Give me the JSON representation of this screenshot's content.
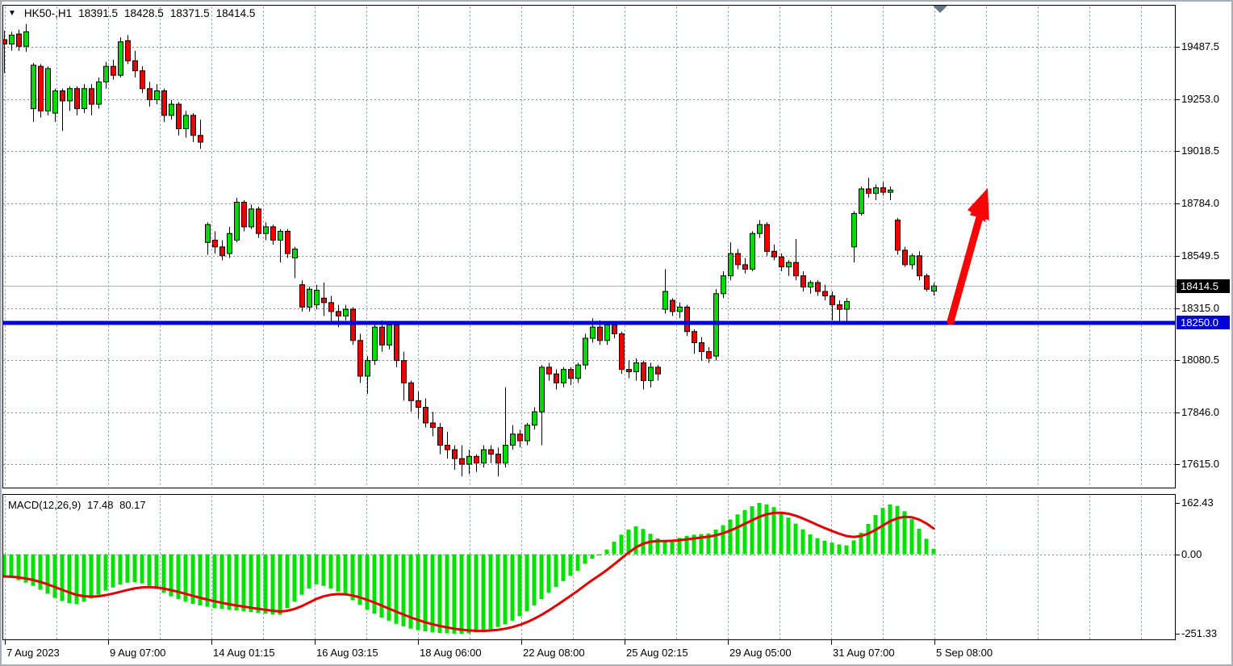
{
  "title": {
    "symbol": "HK50-,H1",
    "open": "18391.5",
    "high": "18428.5",
    "low": "18371.5",
    "close": "18414.5"
  },
  "macd_panel": {
    "name": "MACD(12,26,9)",
    "macd_value": "17.48",
    "signal_value": "80.17"
  },
  "colors": {
    "candle_up": "#00dc00",
    "candle_down": "#ee0000",
    "candle_border": "#000000",
    "wick": "#000000",
    "grid": "#7b8da0",
    "support_line": "#0000d8",
    "current_line": "#b0b0b0",
    "macd_histogram": "#00e300",
    "macd_signal": "#e60000",
    "arrow": "#f80606",
    "shift_marker": "#62788a",
    "pane_border": "#000000"
  },
  "chart_data": {
    "type": "candlestick",
    "title": "HK50-,H1",
    "symbol": "HK50-",
    "timeframe": "H1",
    "legend_position": "top-left",
    "grid": "dashed",
    "price_axis_ticks": [
      "19487.5",
      "19253.0",
      "19018.5",
      "18784.0",
      "18549.5",
      "18315.0",
      "18080.5",
      "17846.0",
      "17615.0"
    ],
    "price_range": [
      17615.0,
      19487.5
    ],
    "macd_axis_ticks": [
      "162.43",
      "0.00",
      "-251.33"
    ],
    "macd_range": [
      -251.33,
      162.43
    ],
    "time_labels": [
      "7 Aug 2023",
      "9 Aug 07:00",
      "14 Aug 01:15",
      "16 Aug 03:15",
      "18 Aug 06:00",
      "22 Aug 08:00",
      "25 Aug 02:15",
      "29 Aug 05:00",
      "31 Aug 07:00",
      "5 Sep 08:00"
    ],
    "current_price": 18414.5,
    "current_price_label": "18414.5",
    "support_level": 18250.0,
    "support_label": "18250.0",
    "annotation": {
      "type": "arrow-up",
      "meaning": "bullish-projection"
    },
    "candles_ohlc": [
      [
        19520,
        19560,
        19370,
        19500
      ],
      [
        19500,
        19555,
        19470,
        19540
      ],
      [
        19545,
        19565,
        19470,
        19490
      ],
      [
        19490,
        19590,
        19465,
        19555
      ],
      [
        19210,
        19415,
        19150,
        19405
      ],
      [
        19400,
        19410,
        19170,
        19200
      ],
      [
        19200,
        19400,
        19180,
        19390
      ],
      [
        19190,
        19300,
        19150,
        19290
      ],
      [
        19290,
        19300,
        19110,
        19245
      ],
      [
        19245,
        19310,
        19200,
        19300
      ],
      [
        19300,
        19310,
        19180,
        19210
      ],
      [
        19210,
        19320,
        19190,
        19300
      ],
      [
        19300,
        19320,
        19180,
        19230
      ],
      [
        19230,
        19350,
        19210,
        19330
      ],
      [
        19330,
        19420,
        19300,
        19400
      ],
      [
        19400,
        19430,
        19340,
        19360
      ],
      [
        19360,
        19530,
        19350,
        19510
      ],
      [
        19515,
        19540,
        19410,
        19425
      ],
      [
        19425,
        19470,
        19350,
        19380
      ],
      [
        19380,
        19400,
        19280,
        19300
      ],
      [
        19300,
        19330,
        19220,
        19250
      ],
      [
        19250,
        19320,
        19230,
        19290
      ],
      [
        19290,
        19300,
        19150,
        19180
      ],
      [
        19180,
        19250,
        19160,
        19230
      ],
      [
        19230,
        19240,
        19090,
        19120
      ],
      [
        19120,
        19200,
        19080,
        19180
      ],
      [
        19180,
        19190,
        19060,
        19090
      ],
      [
        19090,
        19160,
        19030,
        19060
      ],
      [
        18610,
        18700,
        18555,
        18690
      ],
      [
        18620,
        18660,
        18560,
        18590
      ],
      [
        18590,
        18620,
        18530,
        18550
      ],
      [
        18560,
        18680,
        18540,
        18650
      ],
      [
        18620,
        18810,
        18610,
        18790
      ],
      [
        18790,
        18800,
        18660,
        18680
      ],
      [
        18680,
        18780,
        18670,
        18760
      ],
      [
        18760,
        18770,
        18630,
        18650
      ],
      [
        18650,
        18700,
        18620,
        18680
      ],
      [
        18680,
        18690,
        18600,
        18620
      ],
      [
        18620,
        18670,
        18520,
        18660
      ],
      [
        18660,
        18670,
        18540,
        18560
      ],
      [
        18540,
        18590,
        18450,
        18580
      ],
      [
        18420,
        18440,
        18300,
        18320
      ],
      [
        18320,
        18410,
        18300,
        18400
      ],
      [
        18330,
        18420,
        18310,
        18395
      ],
      [
        18360,
        18430,
        18280,
        18340
      ],
      [
        18340,
        18370,
        18250,
        18300
      ],
      [
        18300,
        18330,
        18230,
        18280
      ],
      [
        18280,
        18330,
        18260,
        18310
      ],
      [
        18310,
        18320,
        18150,
        18170
      ],
      [
        18170,
        18200,
        17980,
        18010
      ],
      [
        18010,
        18100,
        17930,
        18080
      ],
      [
        18080,
        18250,
        18060,
        18230
      ],
      [
        18230,
        18260,
        18120,
        18150
      ],
      [
        18150,
        18250,
        18130,
        18240
      ],
      [
        18240,
        18250,
        18050,
        18080
      ],
      [
        18080,
        18120,
        17900,
        17980
      ],
      [
        17980,
        17990,
        17850,
        17900
      ],
      [
        17900,
        17940,
        17820,
        17870
      ],
      [
        17870,
        17910,
        17780,
        17800
      ],
      [
        17800,
        17850,
        17740,
        17780
      ],
      [
        17780,
        17800,
        17660,
        17700
      ],
      [
        17700,
        17760,
        17640,
        17680
      ],
      [
        17680,
        17700,
        17590,
        17640
      ],
      [
        17640,
        17700,
        17560,
        17615
      ],
      [
        17615,
        17680,
        17570,
        17650
      ],
      [
        17650,
        17660,
        17580,
        17620
      ],
      [
        17620,
        17700,
        17600,
        17680
      ],
      [
        17680,
        17700,
        17620,
        17660
      ],
      [
        17660,
        17690,
        17560,
        17620
      ],
      [
        17620,
        17960,
        17600,
        17700
      ],
      [
        17700,
        17790,
        17680,
        17750
      ],
      [
        17750,
        17770,
        17690,
        17720
      ],
      [
        17720,
        17800,
        17700,
        17790
      ],
      [
        17790,
        17870,
        17770,
        17850
      ],
      [
        17850,
        18060,
        17700,
        18050
      ],
      [
        18050,
        18070,
        17990,
        18020
      ],
      [
        18020,
        18040,
        17950,
        17980
      ],
      [
        17980,
        18050,
        17960,
        18040
      ],
      [
        18040,
        18050,
        17970,
        18000
      ],
      [
        18000,
        18070,
        17980,
        18060
      ],
      [
        18060,
        18200,
        18040,
        18180
      ],
      [
        18180,
        18270,
        18160,
        18230
      ],
      [
        18230,
        18260,
        18150,
        18170
      ],
      [
        18170,
        18250,
        18150,
        18240
      ],
      [
        18240,
        18250,
        18180,
        18200
      ],
      [
        18200,
        18210,
        18020,
        18040
      ],
      [
        18040,
        18080,
        18000,
        18030
      ],
      [
        18030,
        18090,
        17990,
        18070
      ],
      [
        18070,
        18080,
        17950,
        17990
      ],
      [
        17990,
        18070,
        17960,
        18050
      ],
      [
        18050,
        18060,
        17990,
        18020
      ],
      [
        18310,
        18490,
        18290,
        18390
      ],
      [
        18350,
        18360,
        18280,
        18300
      ],
      [
        18300,
        18340,
        18270,
        18320
      ],
      [
        18320,
        18330,
        18190,
        18210
      ],
      [
        18210,
        18220,
        18110,
        18160
      ],
      [
        18160,
        18185,
        18080,
        18120
      ],
      [
        18120,
        18140,
        18070,
        18090
      ],
      [
        18100,
        18400,
        18080,
        18380
      ],
      [
        18380,
        18480,
        18360,
        18460
      ],
      [
        18460,
        18610,
        18440,
        18560
      ],
      [
        18560,
        18580,
        18490,
        18510
      ],
      [
        18510,
        18540,
        18470,
        18490
      ],
      [
        18490,
        18660,
        18480,
        18650
      ],
      [
        18650,
        18710,
        18630,
        18690
      ],
      [
        18690,
        18700,
        18550,
        18570
      ],
      [
        18570,
        18600,
        18530,
        18545
      ],
      [
        18545,
        18560,
        18480,
        18500
      ],
      [
        18500,
        18530,
        18460,
        18520
      ],
      [
        18520,
        18625,
        18440,
        18460
      ],
      [
        18460,
        18480,
        18390,
        18410
      ],
      [
        18410,
        18440,
        18380,
        18430
      ],
      [
        18430,
        18440,
        18370,
        18390
      ],
      [
        18390,
        18420,
        18350,
        18370
      ],
      [
        18370,
        18390,
        18260,
        18330
      ],
      [
        18330,
        18350,
        18255,
        18310
      ],
      [
        18310,
        18360,
        18250,
        18345
      ],
      [
        18590,
        18750,
        18520,
        18740
      ],
      [
        18740,
        18860,
        18730,
        18850
      ],
      [
        18850,
        18900,
        18810,
        18830
      ],
      [
        18830,
        18870,
        18800,
        18855
      ],
      [
        18855,
        18880,
        18820,
        18835
      ],
      [
        18835,
        18860,
        18800,
        18845
      ],
      [
        18710,
        18720,
        18555,
        18575
      ],
      [
        18575,
        18590,
        18500,
        18510
      ],
      [
        18510,
        18560,
        18490,
        18550
      ],
      [
        18550,
        18570,
        18440,
        18460
      ],
      [
        18460,
        18470,
        18390,
        18400
      ],
      [
        18391.5,
        18428.5,
        18371.5,
        18414.5
      ]
    ],
    "macd": {
      "params": "12,26,9",
      "macd_last": 17.48,
      "signal_last": 80.17,
      "histogram": [
        -70,
        -75,
        -82,
        -90,
        -100,
        -112,
        -125,
        -138,
        -148,
        -155,
        -158,
        -150,
        -140,
        -128,
        -115,
        -105,
        -96,
        -90,
        -88,
        -92,
        -100,
        -110,
        -122,
        -133,
        -142,
        -150,
        -157,
        -162,
        -166,
        -170,
        -173,
        -176,
        -178,
        -180,
        -183,
        -186,
        -188,
        -190,
        -191,
        -170,
        -150,
        -128,
        -108,
        -95,
        -100,
        -108,
        -118,
        -130,
        -145,
        -160,
        -175,
        -188,
        -200,
        -210,
        -220,
        -228,
        -235,
        -240,
        -244,
        -247,
        -249,
        -250,
        -251,
        -251.33,
        -250,
        -247,
        -243,
        -237,
        -230,
        -221,
        -210,
        -196,
        -180,
        -162,
        -142,
        -122,
        -103,
        -85,
        -68,
        -52,
        -30,
        -14,
        -4,
        15,
        40,
        62,
        78,
        88,
        80,
        65,
        50,
        42,
        46,
        52,
        58,
        62,
        64,
        66,
        78,
        92,
        110,
        126,
        140,
        152,
        162.43,
        158,
        149,
        134,
        116,
        97,
        79,
        63,
        51,
        43,
        37,
        31,
        28,
        44,
        68,
        96,
        124,
        147,
        158,
        153,
        136,
        111,
        81,
        49,
        17.48
      ]
    }
  }
}
